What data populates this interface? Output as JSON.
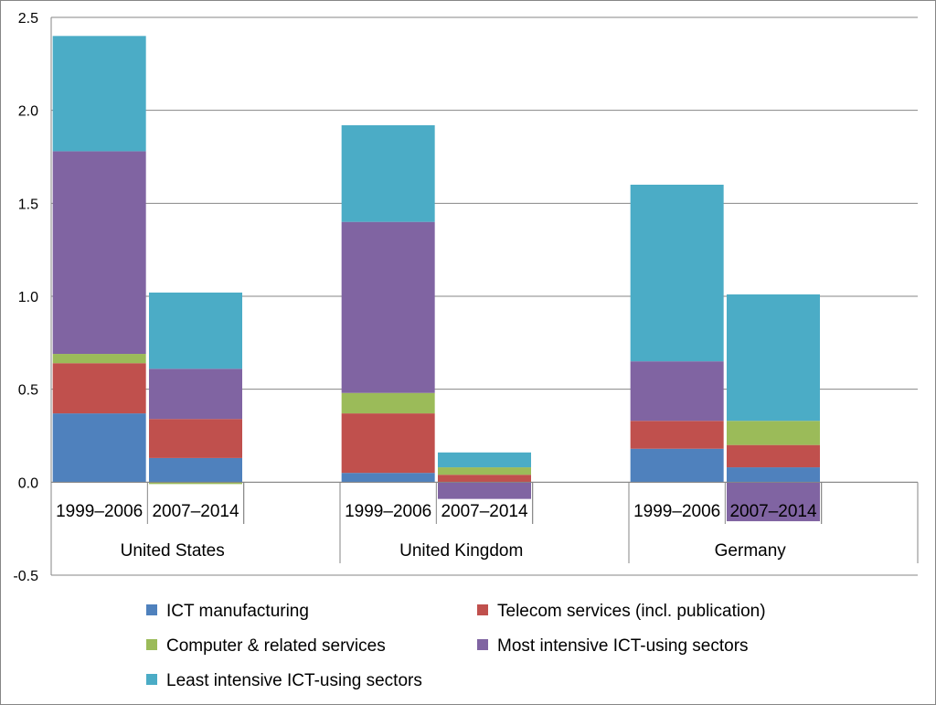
{
  "chart_data": {
    "type": "stacked-bar",
    "title": "",
    "xlabel": "",
    "ylabel": "",
    "ylim": [
      -0.5,
      2.5
    ],
    "yticks": [
      "-0.5",
      "0.0",
      "0.5",
      "1.0",
      "1.5",
      "2.0",
      "2.5"
    ],
    "ytick_values": [
      -0.5,
      0.0,
      0.5,
      1.0,
      1.5,
      2.0,
      2.5
    ],
    "grid": true,
    "legend_position": "bottom",
    "groups": [
      "United States",
      "United Kingdom",
      "Germany"
    ],
    "periods": [
      "1999–2006",
      "2007–2014"
    ],
    "categories": [
      "United States 1999–2006",
      "United States 2007–2014",
      "United Kingdom 1999–2006",
      "United Kingdom 2007–2014",
      "Germany 1999–2006",
      "Germany 2007–2014"
    ],
    "series": [
      {
        "name": "ICT manufacturing",
        "color": "#4f81bd",
        "values": [
          0.37,
          0.13,
          0.05,
          0.0,
          0.18,
          0.08
        ]
      },
      {
        "name": "Telecom services (incl. publication)",
        "color": "#c0504d",
        "values": [
          0.27,
          0.21,
          0.32,
          0.04,
          0.15,
          0.12
        ]
      },
      {
        "name": "Computer & related services",
        "color": "#9bbb59",
        "values": [
          0.05,
          -0.01,
          0.11,
          0.04,
          0.0,
          0.13
        ]
      },
      {
        "name": "Most intensive ICT-using sectors",
        "color": "#8064a2",
        "values": [
          1.09,
          0.27,
          0.92,
          -0.09,
          0.32,
          -0.21
        ]
      },
      {
        "name": "Least intensive ICT-using sectors",
        "color": "#4bacc6",
        "values": [
          0.62,
          0.41,
          0.52,
          0.08,
          0.95,
          0.68
        ]
      }
    ]
  }
}
